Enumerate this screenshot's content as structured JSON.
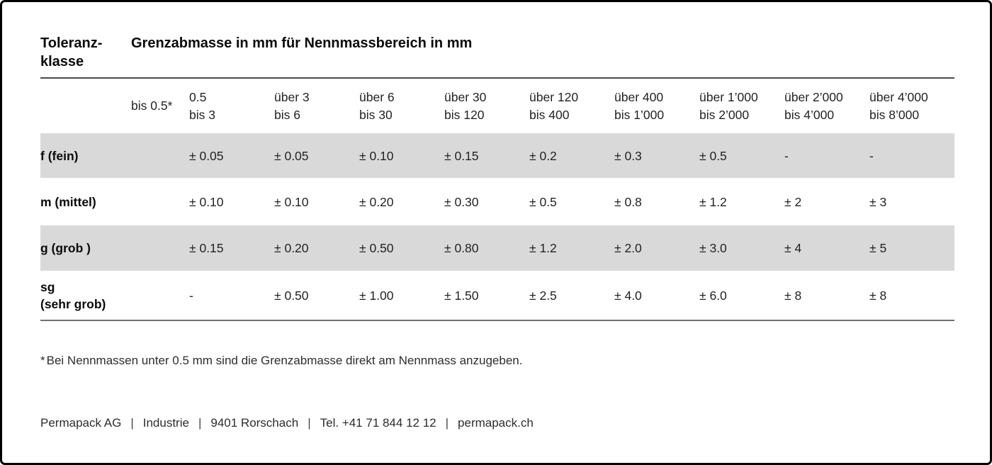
{
  "header": {
    "klasse_line1": "Toleranz-",
    "klasse_line2": "klasse",
    "main_title": "Grenzabmasse in mm für Nennmassbereich in mm"
  },
  "table": {
    "col_headers": [
      {
        "line1": "bis 0.5*",
        "line2": ""
      },
      {
        "line1": "0.5",
        "line2": "bis 3"
      },
      {
        "line1": "über 3",
        "line2": "bis 6"
      },
      {
        "line1": "über 6",
        "line2": "bis 30"
      },
      {
        "line1": "über 30",
        "line2": "bis 120"
      },
      {
        "line1": "über 120",
        "line2": "bis 400"
      },
      {
        "line1": "über 400",
        "line2": "bis 1’000"
      },
      {
        "line1": "über 1’000",
        "line2": "bis 2’000"
      },
      {
        "line1": "über 2’000",
        "line2": "bis 4’000"
      },
      {
        "line1": "über 4’000",
        "line2": "bis 8’000"
      }
    ],
    "rows": [
      {
        "label_line1": "f (fein)",
        "label_line2": "",
        "shaded": true,
        "cells": [
          "",
          "± 0.05",
          "± 0.05",
          "± 0.10",
          "± 0.15",
          "± 0.2",
          "± 0.3",
          "± 0.5",
          "-",
          "-"
        ]
      },
      {
        "label_line1": "m (mittel)",
        "label_line2": "",
        "shaded": false,
        "cells": [
          "",
          "± 0.10",
          "± 0.10",
          "± 0.20",
          "± 0.30",
          "± 0.5",
          "± 0.8",
          "± 1.2",
          "± 2",
          "± 3"
        ]
      },
      {
        "label_line1": "g (grob )",
        "label_line2": "",
        "shaded": true,
        "cells": [
          "",
          "± 0.15",
          "± 0.20",
          "± 0.50",
          "± 0.80",
          "± 1.2",
          "± 2.0",
          "± 3.0",
          "± 4",
          "± 5"
        ]
      },
      {
        "label_line1": "sg",
        "label_line2": "(sehr grob)",
        "shaded": false,
        "cells": [
          "",
          "-",
          "± 0.50",
          "± 1.00",
          "± 1.50",
          "± 2.5",
          "± 4.0",
          "± 6.0",
          "± 8",
          "± 8"
        ]
      }
    ]
  },
  "footnote": {
    "marker": "*",
    "text": "Bei Nennmassen unter 0.5 mm sind die Grenzabmasse direkt am Nennmass anzugeben."
  },
  "footer": {
    "separator": "|",
    "items": [
      "Permapack AG",
      "Industrie",
      "9401 Rorschach",
      "Tel. +41 71 844 12 12",
      "permapack.ch"
    ]
  },
  "colors": {
    "row_shade": "#d9d9d9",
    "rule_top": "#4a4a4a",
    "rule_bottom": "#707070",
    "border": "#000000",
    "text": "#232323"
  }
}
